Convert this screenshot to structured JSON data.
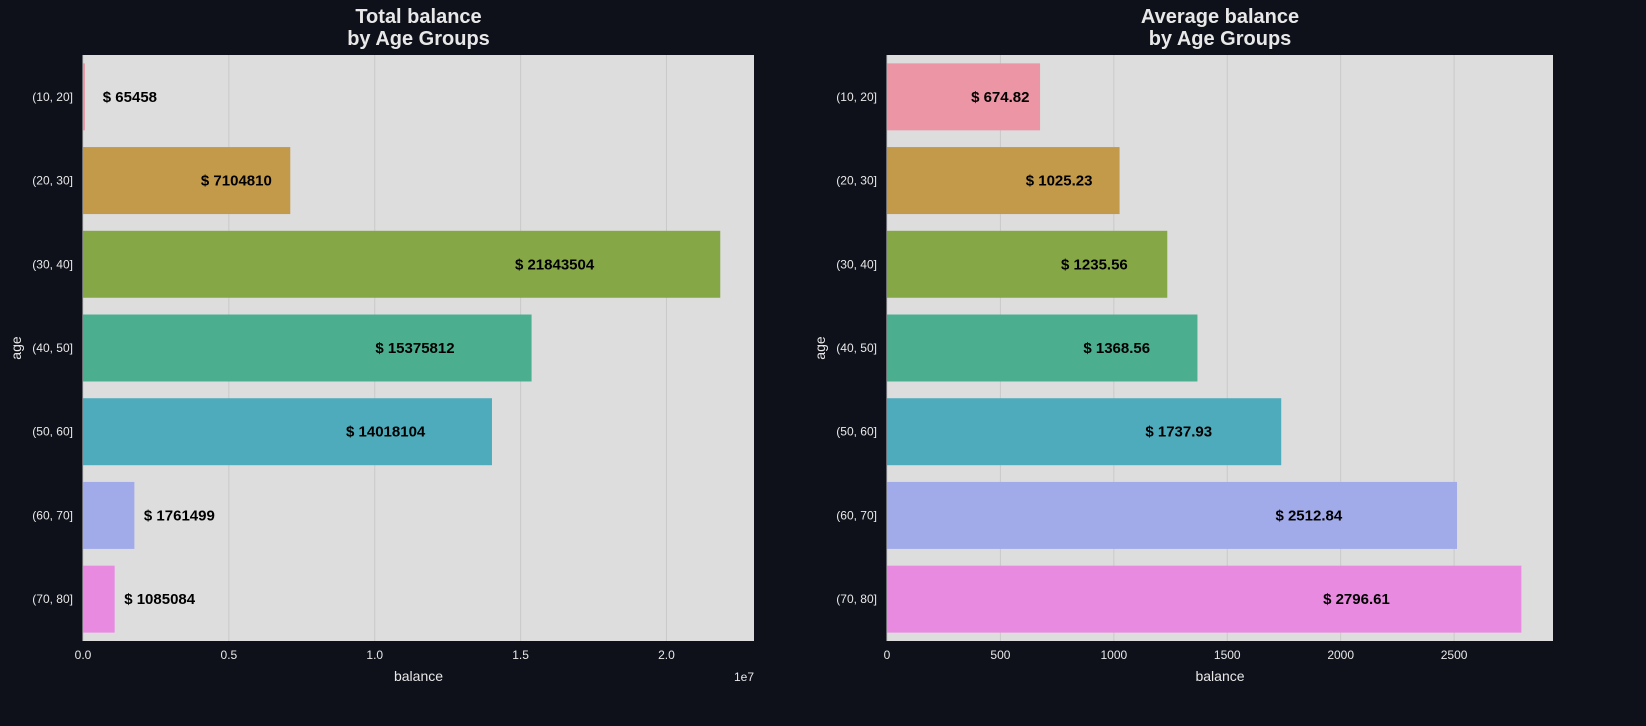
{
  "chart_data": [
    {
      "type": "bar",
      "orientation": "horizontal",
      "title": "Total balance\nby Age Groups",
      "xlabel": "balance",
      "ylabel": "age",
      "x_scale_label": "1e7",
      "xlim": [
        0,
        23000000
      ],
      "xticks": [
        0,
        5000000,
        10000000,
        15000000,
        20000000
      ],
      "xtick_labels": [
        "0.0",
        "0.5",
        "1.0",
        "1.5",
        "2.0"
      ],
      "categories": [
        "(10, 20]",
        "(20, 30]",
        "(30, 40]",
        "(40, 50]",
        "(50, 60]",
        "(60, 70]",
        "(70, 80]"
      ],
      "values": [
        65458,
        7104810,
        21843504,
        15375812,
        14018104,
        1761499,
        1085084
      ],
      "data_labels": [
        "$ 65458",
        "$ 7104810",
        "$ 21843504",
        "$ 15375812",
        "$ 14018104",
        "$ 1761499",
        "$ 1085084"
      ],
      "grid": true
    },
    {
      "type": "bar",
      "orientation": "horizontal",
      "title": "Average balance\nby Age Groups",
      "xlabel": "balance",
      "ylabel": "age",
      "xlim": [
        0,
        2936
      ],
      "xticks": [
        0,
        500,
        1000,
        1500,
        2000,
        2500
      ],
      "xtick_labels": [
        "0",
        "500",
        "1000",
        "1500",
        "2000",
        "2500"
      ],
      "categories": [
        "(10, 20]",
        "(20, 30]",
        "(30, 40]",
        "(40, 50]",
        "(50, 60]",
        "(60, 70]",
        "(70, 80]"
      ],
      "values": [
        674.82,
        1025.23,
        1235.56,
        1368.56,
        1737.93,
        2512.84,
        2796.61
      ],
      "data_labels": [
        "$ 674.82",
        "$ 1025.23",
        "$ 1235.56",
        "$ 1368.56",
        "$ 1737.93",
        "$ 2512.84",
        "$ 2796.61"
      ],
      "grid": true
    }
  ],
  "colors": {
    "figure_background": "#0e111a",
    "plot_background": "#dddddd",
    "grid": "#c9c9c9",
    "text": "#e8e8e8",
    "label_text": "#000000",
    "bars": [
      "#ec95a4",
      "#c3994a",
      "#86a746",
      "#4bae8f",
      "#4eabbb",
      "#a1abe9",
      "#e98ae1"
    ]
  }
}
